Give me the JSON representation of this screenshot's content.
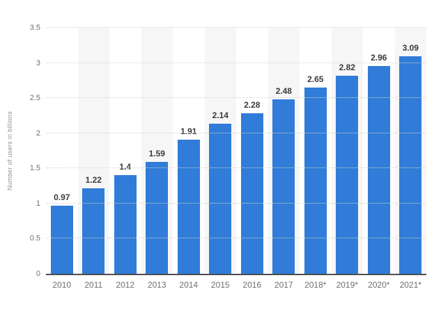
{
  "chart_data": {
    "type": "bar",
    "title": "",
    "xlabel": "",
    "ylabel": "Number of users in billions",
    "categories": [
      "2010",
      "2011",
      "2012",
      "2013",
      "2014",
      "2015",
      "2016",
      "2017",
      "2018*",
      "2019*",
      "2020*",
      "2021*"
    ],
    "values": [
      0.97,
      1.22,
      1.4,
      1.59,
      1.91,
      2.14,
      2.28,
      2.48,
      2.65,
      2.82,
      2.96,
      3.09
    ],
    "value_labels": [
      "0.97",
      "1.22",
      "1.4",
      "1.59",
      "1.91",
      "2.14",
      "2.28",
      "2.48",
      "2.65",
      "2.82",
      "2.96",
      "3.09"
    ],
    "yticks": [
      {
        "value": 0,
        "label": "0"
      },
      {
        "value": 0.5,
        "label": "0.5"
      },
      {
        "value": 1,
        "label": "1"
      },
      {
        "value": 1.5,
        "label": "1.5"
      },
      {
        "value": 2,
        "label": "2"
      },
      {
        "value": 2.5,
        "label": "2.5"
      },
      {
        "value": 3,
        "label": "3"
      },
      {
        "value": 3.5,
        "label": "3.5"
      }
    ],
    "ylim": [
      0,
      3.5
    ],
    "grid": "horizontal-dotted",
    "legend_position": "none",
    "colors": {
      "bar": "#307cd8",
      "column_stripe": "#f6f6f6",
      "gridline": "#d4d4d4",
      "axis_line": "#4e4e4e",
      "value_label": "#3a3a3a",
      "tick_label": "#707070",
      "axis_title": "#8f8f8f",
      "background": "#ffffff"
    }
  }
}
